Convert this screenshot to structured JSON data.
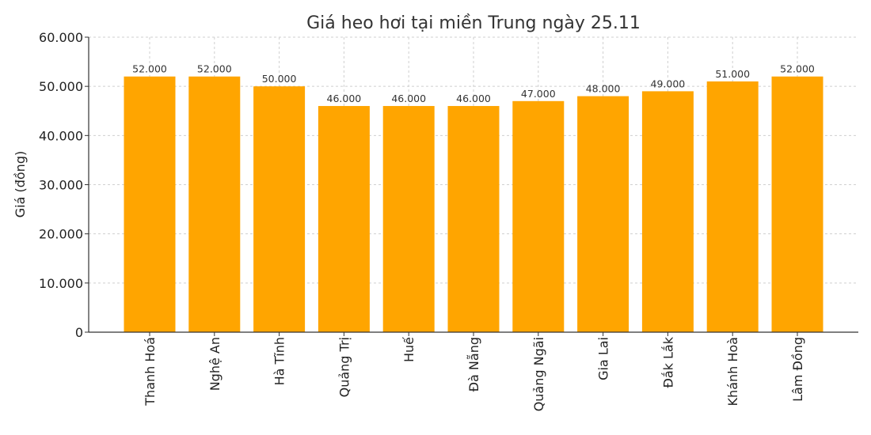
{
  "chart_data": {
    "type": "bar",
    "title": "Giá heo hơi tại miền Trung ngày 25.11",
    "xlabel": "",
    "ylabel": "Giá (đồng)",
    "ylim": [
      0,
      60000
    ],
    "yticks": [
      0,
      10000,
      20000,
      30000,
      40000,
      50000,
      60000
    ],
    "ytick_labels": [
      "0",
      "10.000",
      "20.000",
      "30.000",
      "40.000",
      "50.000",
      "60.000"
    ],
    "categories": [
      "Thanh Hoá",
      "Nghệ An",
      "Hà Tĩnh",
      "Quảng Trị",
      "Huế",
      "Đà Nẵng",
      "Quảng Ngãi",
      "Gia Lai",
      "Đắk Lắk",
      "Khánh Hoà",
      "Lâm Đồng"
    ],
    "values": [
      52000,
      52000,
      50000,
      46000,
      46000,
      46000,
      47000,
      48000,
      49000,
      51000,
      52000
    ],
    "value_labels": [
      "52.000",
      "52.000",
      "50.000",
      "46.000",
      "46.000",
      "46.000",
      "47.000",
      "48.000",
      "49.000",
      "51.000",
      "52.000"
    ],
    "bar_color": "#FFA500",
    "grid": true
  }
}
